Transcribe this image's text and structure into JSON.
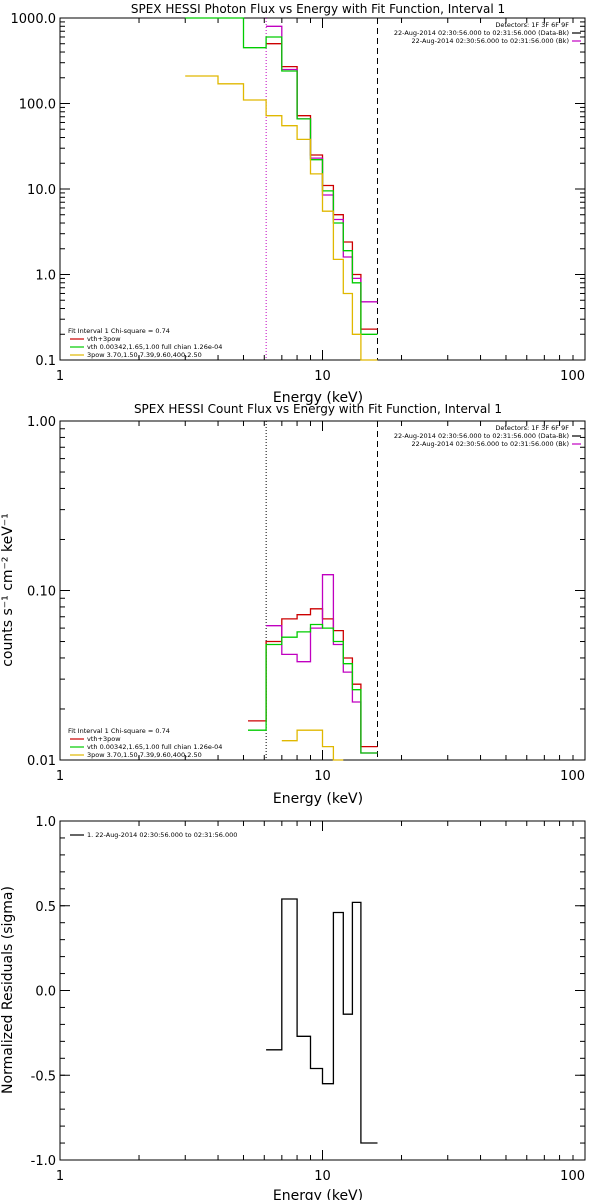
{
  "chart_data": [
    {
      "type": "line",
      "title": "SPEX HESSI Photon Flux vs Energy with Fit Function, Interval 1",
      "xlabel": "Energy (keV)",
      "ylabel": "",
      "xscale": "log",
      "yscale": "log",
      "xlim": [
        1,
        100
      ],
      "ylim": [
        0.1,
        1000
      ],
      "x_ticks": [
        {
          "v": 1,
          "label": "1"
        },
        {
          "v": 10,
          "label": "10"
        },
        {
          "v": 100,
          "label": "100"
        }
      ],
      "y_ticks": [
        {
          "v": 0.1,
          "label": "0.1"
        },
        {
          "v": 1,
          "label": "1.0"
        },
        {
          "v": 10,
          "label": "10.0"
        },
        {
          "v": 100,
          "label": "100.0"
        },
        {
          "v": 1000,
          "label": "1000.0"
        }
      ],
      "legend_right": [
        "Detectors: 1F 3F 6F 9F",
        "22-Aug-2014 02:30:56.000 to 02:31:56.000 (Data-Bk)",
        "22-Aug-2014 02:30:56.000 to 02:31:56.000 (Bk)"
      ],
      "legend_left": [
        "Fit Interval  1    Chi-square = 0.74",
        "vth+3pow",
        "vth 0.00342,1.65,1.00  full chian 1.26e-04",
        "3pow 3.70,1.50,7.39,9.60,400,2.50"
      ],
      "vlines": [
        {
          "x": 6.1,
          "style": "dotted",
          "color": "#c000c0"
        },
        {
          "x": 16.2,
          "style": "dashed",
          "color": "#000000"
        }
      ],
      "series": [
        {
          "color": "#cc0000",
          "edges": [
            6.1,
            7,
            8,
            9,
            10,
            11,
            12,
            13,
            14,
            16.2
          ],
          "values": [
            500,
            270,
            72,
            25,
            11,
            5,
            2.4,
            1.0,
            0.23
          ]
        },
        {
          "color": "#c000c0",
          "edges": [
            6.1,
            7,
            8,
            9,
            10,
            11,
            12,
            13,
            14,
            16.2
          ],
          "values": [
            800,
            250,
            66,
            23,
            8.5,
            4.4,
            1.6,
            0.9,
            0.48
          ]
        },
        {
          "color": "#00cc00",
          "edges": [
            3,
            5,
            6.1,
            7,
            8,
            9,
            10,
            11,
            12,
            13,
            14,
            16.2
          ],
          "values": [
            1500,
            450,
            600,
            240,
            66,
            22,
            9.5,
            4.0,
            1.9,
            0.8,
            0.2
          ]
        },
        {
          "color": "#e0b800",
          "edges": [
            3,
            4,
            5,
            6.1,
            7,
            8,
            9,
            10,
            11,
            12,
            13,
            14,
            16.2
          ],
          "values": [
            210,
            170,
            110,
            72,
            55,
            38,
            15,
            5.5,
            1.5,
            0.6,
            0.2,
            0.06
          ]
        }
      ]
    },
    {
      "type": "line",
      "title": "SPEX HESSI Count Flux vs Energy with Fit Function, Interval 1",
      "xlabel": "Energy (keV)",
      "ylabel": "counts s⁻¹ cm⁻² keV⁻¹",
      "xscale": "log",
      "yscale": "log",
      "xlim": [
        1,
        100
      ],
      "ylim": [
        0.01,
        1.0
      ],
      "x_ticks": [
        {
          "v": 1,
          "label": "1"
        },
        {
          "v": 10,
          "label": "10"
        },
        {
          "v": 100,
          "label": "100"
        }
      ],
      "y_ticks": [
        {
          "v": 0.01,
          "label": "0.01"
        },
        {
          "v": 0.1,
          "label": "0.10"
        },
        {
          "v": 1,
          "label": "1.00"
        }
      ],
      "legend_right": [
        "Detectors: 1F 3F 6F 9F",
        "22-Aug-2014 02:30:56.000 to 02:31:56.000 (Data-Bk)",
        "22-Aug-2014 02:30:56.000 to 02:31:56.000 (Bk)"
      ],
      "legend_left": [
        "Fit Interval  1    Chi-square = 0.74",
        "vth+3pow",
        "vth 0.00342,1.65,1.00  full chian 1.26e-04",
        "3pow 3.70,1.50,7.39,9.60,400,2.50"
      ],
      "vlines": [
        {
          "x": 6.1,
          "style": "dotted",
          "color": "#000000"
        },
        {
          "x": 16.2,
          "style": "dashed",
          "color": "#000000"
        }
      ],
      "series": [
        {
          "color": "#cc0000",
          "edges": [
            5.2,
            6.1,
            7,
            8,
            9,
            10,
            11,
            12,
            13,
            14,
            16.2
          ],
          "values": [
            0.017,
            0.05,
            0.068,
            0.072,
            0.078,
            0.068,
            0.058,
            0.04,
            0.028,
            0.012
          ]
        },
        {
          "color": "#c000c0",
          "edges": [
            6.1,
            7,
            8,
            9,
            10,
            11,
            12,
            13,
            14,
            16.2
          ],
          "values": [
            0.062,
            0.042,
            0.038,
            0.06,
            0.124,
            0.048,
            0.033,
            0.022,
            0.011
          ]
        },
        {
          "color": "#00cc00",
          "edges": [
            5.2,
            6.1,
            7,
            8,
            9,
            10,
            11,
            12,
            13,
            14,
            16.2
          ],
          "values": [
            0.015,
            0.048,
            0.053,
            0.057,
            0.063,
            0.06,
            0.05,
            0.037,
            0.026,
            0.011
          ]
        },
        {
          "color": "#e0b800",
          "edges": [
            7,
            8,
            9,
            10,
            11,
            12
          ],
          "values": [
            0.013,
            0.015,
            0.015,
            0.012,
            0.01
          ]
        }
      ]
    },
    {
      "type": "line",
      "title": "",
      "xlabel": "Energy (keV)",
      "ylabel": "Normalized Residuals (sigma)",
      "xscale": "log",
      "yscale": "linear",
      "xlim": [
        1,
        100
      ],
      "ylim": [
        -1.0,
        1.0
      ],
      "x_ticks": [
        {
          "v": 1,
          "label": "1"
        },
        {
          "v": 10,
          "label": "10"
        },
        {
          "v": 100,
          "label": "100"
        }
      ],
      "y_ticks": [
        {
          "v": -1,
          "label": "-1.0"
        },
        {
          "v": -0.5,
          "label": "-0.5"
        },
        {
          "v": 0,
          "label": "0.0"
        },
        {
          "v": 0.5,
          "label": "0.5"
        },
        {
          "v": 1,
          "label": "1.0"
        }
      ],
      "legend_left": [
        "1. 22-Aug-2014 02:30:56.000 to 02:31:56.000"
      ],
      "vlines": [],
      "series": [
        {
          "color": "#000000",
          "edges": [
            6.1,
            7,
            8,
            9,
            10,
            11,
            12,
            13,
            14,
            16.2
          ],
          "values": [
            -0.35,
            0.54,
            -0.27,
            -0.46,
            -0.55,
            0.46,
            -0.14,
            0.52,
            -0.9
          ]
        }
      ]
    }
  ]
}
